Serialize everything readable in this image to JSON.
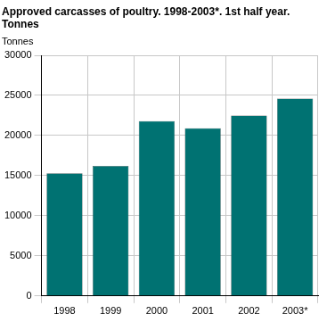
{
  "chart_data": {
    "type": "bar",
    "title": [
      "Approved carcasses of poultry. 1998-2003*. 1st half year.",
      "Tonnes"
    ],
    "y_label": "Tonnes",
    "categories": [
      "1998",
      "1999",
      "2000",
      "2001",
      "2002",
      "2003*"
    ],
    "values": [
      15300,
      16200,
      21800,
      20900,
      22500,
      24600
    ],
    "color": "#007272",
    "ylim": [
      0,
      30000
    ],
    "yticks": [
      0,
      5000,
      10000,
      15000,
      20000,
      25000,
      30000
    ],
    "grid": true
  }
}
